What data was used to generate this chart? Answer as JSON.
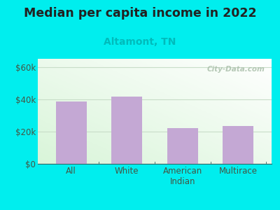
{
  "title": "Median per capita income in 2022",
  "subtitle": "Altamont, TN",
  "categories": [
    "All",
    "White",
    "American\nIndian",
    "Multirace"
  ],
  "values": [
    38500,
    41500,
    22000,
    23200
  ],
  "bar_color": "#c4a8d4",
  "title_fontsize": 12.5,
  "subtitle_fontsize": 10,
  "subtitle_color": "#00bbbb",
  "title_color": "#222222",
  "background_color": "#00eeee",
  "ylim": [
    0,
    65000
  ],
  "yticks": [
    0,
    20000,
    40000,
    60000
  ],
  "ytick_labels": [
    "$0",
    "$20k",
    "$40k",
    "$60k"
  ],
  "tick_color": "#336666",
  "axis_label_color": "#445544",
  "grid_color": "#c8ddc8",
  "watermark": "City-Data.com"
}
